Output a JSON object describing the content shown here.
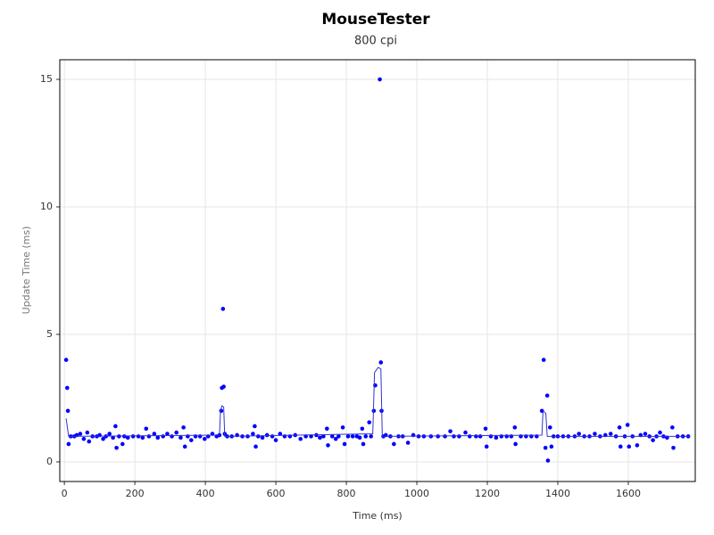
{
  "chart_data": {
    "type": "scatter",
    "title": "MouseTester",
    "subtitle": "800 cpi",
    "x_label": "Time (ms)",
    "y_label": "Update Time (ms)",
    "xlim": [
      -13,
      1790
    ],
    "ylim": [
      -0.77,
      15.77
    ],
    "xticks": [
      0,
      200,
      400,
      600,
      800,
      1000,
      1200,
      1400,
      1600
    ],
    "yticks": [
      0,
      5,
      10,
      15
    ],
    "grid": true,
    "series": [
      {
        "color": "#0000ff",
        "line": false,
        "x": [
          5,
          8,
          10,
          12,
          18,
          28,
          35,
          45,
          55,
          65,
          70,
          80,
          92,
          100,
          110,
          118,
          128,
          138,
          145,
          148,
          155,
          165,
          170,
          180,
          195,
          210,
          222,
          232,
          240,
          255,
          265,
          280,
          292,
          305,
          318,
          330,
          338,
          342,
          350,
          360,
          372,
          385,
          398,
          408,
          420,
          432,
          440,
          445,
          447,
          450,
          452,
          455,
          462,
          475,
          490,
          505,
          520,
          535,
          540,
          543,
          550,
          562,
          575,
          590,
          600,
          612,
          625,
          640,
          655,
          670,
          685,
          700,
          715,
          725,
          735,
          745,
          748,
          760,
          770,
          778,
          790,
          795,
          805,
          818,
          830,
          838,
          845,
          848,
          855,
          865,
          870,
          878,
          882,
          895,
          898,
          900,
          905,
          912,
          925,
          935,
          948,
          960,
          975,
          990,
          1005,
          1020,
          1040,
          1060,
          1080,
          1095,
          1105,
          1120,
          1138,
          1150,
          1168,
          1180,
          1195,
          1198,
          1210,
          1225,
          1240,
          1255,
          1268,
          1278,
          1280,
          1295,
          1310,
          1325,
          1340,
          1355,
          1360,
          1365,
          1370,
          1372,
          1378,
          1382,
          1388,
          1400,
          1415,
          1430,
          1448,
          1460,
          1475,
          1490,
          1505,
          1520,
          1535,
          1550,
          1565,
          1575,
          1578,
          1590,
          1598,
          1602,
          1612,
          1625,
          1635,
          1648,
          1660,
          1670,
          1680,
          1690,
          1700,
          1710,
          1725,
          1728,
          1740,
          1755,
          1770
        ],
        "values": [
          4.0,
          2.9,
          2.0,
          0.7,
          1.0,
          1.0,
          1.05,
          1.1,
          0.9,
          1.15,
          0.8,
          1.0,
          1.0,
          1.05,
          0.9,
          1.0,
          1.1,
          0.95,
          1.4,
          0.55,
          1.0,
          0.7,
          1.0,
          0.95,
          1.0,
          1.0,
          0.95,
          1.3,
          1.0,
          1.1,
          0.95,
          1.0,
          1.1,
          1.0,
          1.15,
          0.95,
          1.35,
          0.6,
          1.0,
          0.85,
          1.0,
          1.0,
          0.9,
          1.0,
          1.1,
          1.0,
          1.05,
          2.0,
          2.9,
          6.0,
          2.95,
          1.1,
          1.0,
          1.0,
          1.05,
          1.0,
          1.0,
          1.1,
          1.4,
          0.6,
          1.0,
          0.95,
          1.05,
          1.0,
          0.85,
          1.1,
          1.0,
          1.0,
          1.05,
          0.9,
          1.0,
          1.0,
          1.05,
          0.95,
          1.0,
          1.3,
          0.65,
          1.0,
          0.9,
          1.0,
          1.35,
          0.7,
          1.0,
          1.0,
          1.0,
          0.95,
          1.3,
          0.7,
          1.0,
          1.55,
          1.0,
          2.0,
          3.0,
          15.0,
          3.9,
          2.0,
          1.0,
          1.05,
          1.0,
          0.7,
          1.0,
          1.0,
          0.75,
          1.05,
          1.0,
          1.0,
          1.0,
          1.0,
          1.0,
          1.2,
          1.0,
          1.0,
          1.15,
          1.0,
          1.0,
          1.0,
          1.3,
          0.6,
          1.0,
          0.95,
          1.0,
          1.0,
          1.0,
          1.35,
          0.7,
          1.0,
          1.0,
          1.0,
          1.0,
          2.0,
          4.0,
          0.55,
          2.6,
          0.05,
          1.35,
          0.6,
          1.0,
          1.0,
          1.0,
          1.0,
          1.0,
          1.1,
          1.0,
          1.0,
          1.1,
          1.0,
          1.05,
          1.1,
          1.0,
          1.35,
          0.6,
          1.0,
          1.45,
          0.6,
          1.0,
          0.65,
          1.05,
          1.1,
          1.0,
          0.85,
          1.0,
          1.15,
          1.0,
          0.95,
          1.35,
          0.55,
          1.0,
          1.0,
          1.0
        ]
      },
      {
        "color": "#3333cc",
        "line": true,
        "x": [
          5,
          12,
          440,
          443,
          447,
          452,
          455,
          875,
          880,
          890,
          898,
          902,
          1355,
          1358,
          1366,
          1370,
          1775
        ],
        "values": [
          1.7,
          1.0,
          1.05,
          2.0,
          2.2,
          2.15,
          1.0,
          1.1,
          3.5,
          3.7,
          3.65,
          1.0,
          1.05,
          2.0,
          1.9,
          1.0,
          1.0
        ]
      }
    ]
  }
}
